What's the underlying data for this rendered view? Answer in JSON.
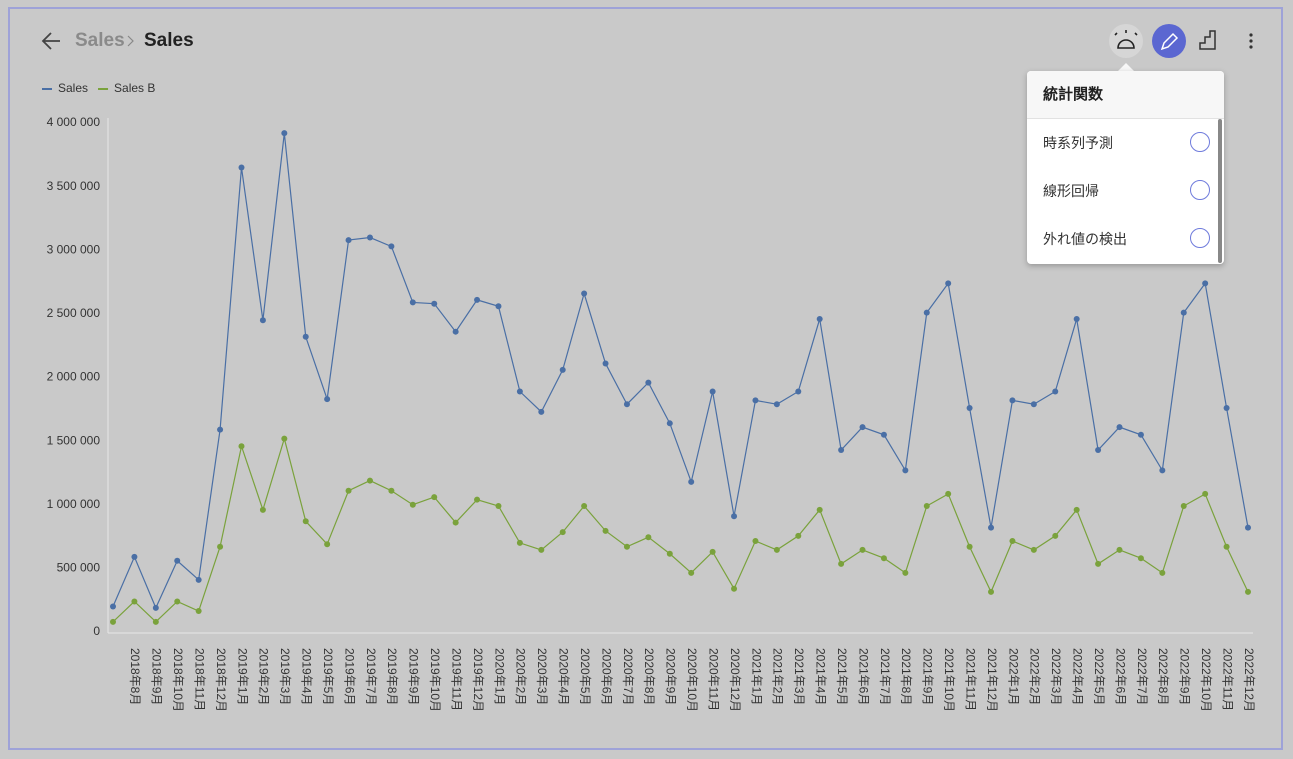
{
  "header": {
    "breadcrumb_parent": "Sales",
    "breadcrumb_current": "Sales"
  },
  "menu": {
    "title": "統計関数",
    "items": [
      "時系列予測",
      "線形回帰",
      "外れ値の検出"
    ]
  },
  "chart_data": {
    "type": "line",
    "legend": "top-left",
    "grid": false,
    "categories": [
      null,
      "2018年8月",
      "2018年9月",
      "2018年10月",
      "2018年11月",
      "2018年12月",
      "2019年1月",
      "2019年2月",
      "2019年3月",
      "2019年4月",
      "2019年5月",
      "2019年6月",
      "2019年7月",
      "2019年8月",
      "2019年9月",
      "2019年10月",
      "2019年11月",
      "2019年12月",
      "2020年1月",
      "2020年2月",
      "2020年3月",
      "2020年4月",
      "2020年5月",
      "2020年6月",
      "2020年7月",
      "2020年8月",
      "2020年9月",
      "2020年10月",
      "2020年11月",
      "2020年12月",
      "2021年1月",
      "2021年2月",
      "2021年3月",
      "2021年4月",
      "2021年5月",
      "2021年6月",
      "2021年7月",
      "2021年8月",
      "2021年9月",
      "2021年10月",
      "2021年11月",
      "2021年12月",
      "2022年1月",
      "2022年2月",
      "2022年3月",
      "2022年4月",
      "2022年5月",
      "2022年6月",
      "2022年7月",
      "2022年8月",
      "2022年9月",
      "2022年10月",
      "2022年11月",
      "2022年12月"
    ],
    "series": [
      {
        "name": "Sales",
        "color": "#4a6fa5",
        "values": [
          200000,
          590000,
          190000,
          560000,
          410000,
          1590000,
          3650000,
          2450000,
          3920000,
          2320000,
          1830000,
          3080000,
          3100000,
          3030000,
          2590000,
          2580000,
          2360000,
          2610000,
          2560000,
          1890000,
          1730000,
          2060000,
          2660000,
          2110000,
          1790000,
          1960000,
          1640000,
          1180000,
          1890000,
          910000,
          1820000,
          1790000,
          1890000,
          2460000,
          1430000,
          1610000,
          1550000,
          1270000,
          2510000,
          2740000,
          1760000,
          820000,
          1820000,
          1790000,
          1890000,
          2460000,
          1430000,
          1610000,
          1550000,
          1270000,
          2510000,
          2740000,
          1760000,
          820000
        ]
      },
      {
        "name": "Sales B",
        "color": "#7aa23c",
        "values": [
          80000,
          240000,
          80000,
          240000,
          165000,
          670000,
          1460000,
          960000,
          1520000,
          870000,
          690000,
          1110000,
          1190000,
          1110000,
          1000000,
          1060000,
          860000,
          1040000,
          990000,
          700000,
          645000,
          785000,
          990000,
          795000,
          670000,
          745000,
          615000,
          465000,
          630000,
          340000,
          715000,
          645000,
          755000,
          960000,
          535000,
          645000,
          580000,
          465000,
          990000,
          1085000,
          670000,
          315000,
          715000,
          645000,
          755000,
          960000,
          535000,
          645000,
          580000,
          465000,
          990000,
          1085000,
          670000,
          315000
        ]
      }
    ],
    "ylim": [
      0,
      4000000
    ],
    "yticks": [
      0,
      {
        "value": 500000,
        "label": "500 000"
      },
      {
        "value": 1000000,
        "label": "1 000 000"
      },
      {
        "value": 1500000,
        "label": "1 500 000"
      },
      {
        "value": 2000000,
        "label": "2 000 000"
      },
      {
        "value": 2500000,
        "label": "2 500 000"
      },
      {
        "value": 3000000,
        "label": "3 000 000"
      },
      {
        "value": 3500000,
        "label": "3 500 000"
      },
      {
        "value": 4000000,
        "label": "4 000 000"
      }
    ]
  }
}
